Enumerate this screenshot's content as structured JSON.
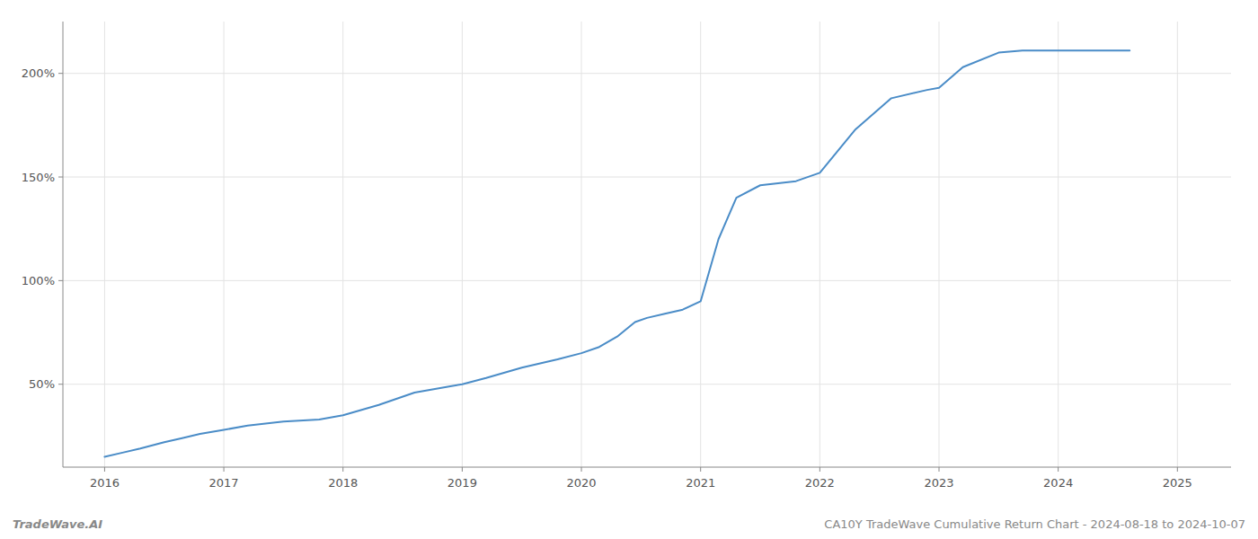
{
  "chart_data": {
    "type": "line",
    "title": "CA10Y TradeWave Cumulative Return Chart - 2024-08-18 to 2024-10-07",
    "annotations": [
      "TradeWave.AI"
    ],
    "x": [
      2016.0,
      2016.15,
      2016.3,
      2016.5,
      2016.65,
      2016.8,
      2017.0,
      2017.2,
      2017.5,
      2017.8,
      2018.0,
      2018.3,
      2018.6,
      2018.9,
      2019.0,
      2019.2,
      2019.5,
      2019.8,
      2020.0,
      2020.15,
      2020.3,
      2020.45,
      2020.55,
      2020.7,
      2020.85,
      2021.0,
      2021.15,
      2021.3,
      2021.5,
      2021.8,
      2022.0,
      2022.3,
      2022.6,
      2022.9,
      2023.0,
      2023.2,
      2023.5,
      2023.7,
      2024.0,
      2024.3,
      2024.6
    ],
    "values": [
      15,
      17,
      19,
      22,
      24,
      26,
      28,
      30,
      32,
      33,
      35,
      40,
      46,
      49,
      50,
      53,
      58,
      62,
      65,
      68,
      73,
      80,
      82,
      84,
      86,
      90,
      120,
      140,
      146,
      148,
      152,
      173,
      188,
      192,
      193,
      203,
      210,
      211,
      211,
      211,
      211
    ],
    "color": "#4a8cc7",
    "xlim": [
      2015.65,
      2025.45
    ],
    "xticks": [
      2016,
      2017,
      2018,
      2019,
      2020,
      2021,
      2022,
      2023,
      2024,
      2025
    ],
    "ylim": [
      10,
      225
    ],
    "yticks": [
      {
        "value": 50,
        "label": "50%"
      },
      {
        "value": 100,
        "label": "100%"
      },
      {
        "value": 150,
        "label": "150%"
      },
      {
        "value": 200,
        "label": "200%"
      }
    ],
    "grid": true
  }
}
